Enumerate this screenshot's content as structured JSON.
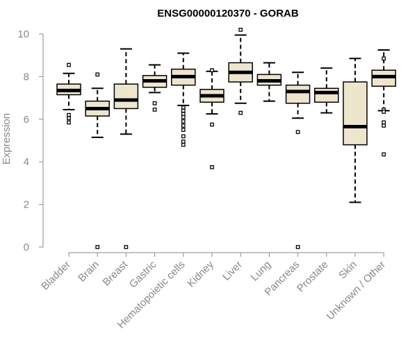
{
  "chart_data": {
    "type": "boxplot",
    "title": "ENSG00000120370 - GORAB",
    "xlabel": "",
    "ylabel": "Expression",
    "ylim": [
      0,
      10
    ],
    "yticks": [
      0,
      2,
      4,
      6,
      8,
      10
    ],
    "colors": {
      "box_fill": "#ede5cc",
      "box_stroke": "#000000",
      "axis": "#888888"
    },
    "categories": [
      "Bladder",
      "Brain",
      "Breast",
      "Gastric",
      "Hematopoietic cells",
      "Kidney",
      "Liver",
      "Lung",
      "Pancreas",
      "Prostate",
      "Skin",
      "Unknown / Other"
    ],
    "boxes": [
      {
        "whisker_low": 6.45,
        "q1": 7.15,
        "median": 7.35,
        "q3": 7.65,
        "whisker_high": 8.15,
        "outliers": [
          8.55,
          6.2,
          6.05,
          5.85
        ]
      },
      {
        "whisker_low": 5.15,
        "q1": 6.15,
        "median": 6.5,
        "q3": 6.85,
        "whisker_high": 7.45,
        "outliers": [
          8.1,
          0.0
        ]
      },
      {
        "whisker_low": 5.3,
        "q1": 6.5,
        "median": 6.9,
        "q3": 7.65,
        "whisker_high": 9.3,
        "outliers": [
          0.0
        ]
      },
      {
        "whisker_low": 7.25,
        "q1": 7.5,
        "median": 7.8,
        "q3": 8.05,
        "whisker_high": 8.55,
        "outliers": [
          6.75,
          6.45
        ]
      },
      {
        "whisker_low": 6.65,
        "q1": 7.6,
        "median": 8.0,
        "q3": 8.35,
        "whisker_high": 9.1,
        "outliers": [
          6.55,
          6.4,
          6.25,
          6.1,
          5.9,
          5.7,
          5.5,
          5.2,
          4.95,
          4.8
        ]
      },
      {
        "whisker_low": 6.25,
        "q1": 6.8,
        "median": 7.1,
        "q3": 7.4,
        "whisker_high": 8.25,
        "outliers": [
          8.3,
          5.75,
          3.75
        ]
      },
      {
        "whisker_low": 6.75,
        "q1": 7.75,
        "median": 8.2,
        "q3": 8.65,
        "whisker_high": 9.95,
        "outliers": [
          10.2,
          6.3
        ]
      },
      {
        "whisker_low": 6.85,
        "q1": 7.6,
        "median": 7.8,
        "q3": 8.1,
        "whisker_high": 8.65,
        "outliers": []
      },
      {
        "whisker_low": 6.05,
        "q1": 6.75,
        "median": 7.3,
        "q3": 7.6,
        "whisker_high": 8.2,
        "outliers": [
          5.4,
          0.0
        ]
      },
      {
        "whisker_low": 6.3,
        "q1": 6.8,
        "median": 7.25,
        "q3": 7.45,
        "whisker_high": 8.4,
        "outliers": []
      },
      {
        "whisker_low": 2.1,
        "q1": 4.8,
        "median": 5.65,
        "q3": 7.75,
        "whisker_high": 8.85,
        "outliers": []
      },
      {
        "whisker_low": 6.4,
        "q1": 7.55,
        "median": 8.0,
        "q3": 8.3,
        "whisker_high": 9.25,
        "outliers": [
          8.85,
          6.45,
          6.35,
          5.85,
          5.7,
          4.35
        ]
      }
    ]
  }
}
